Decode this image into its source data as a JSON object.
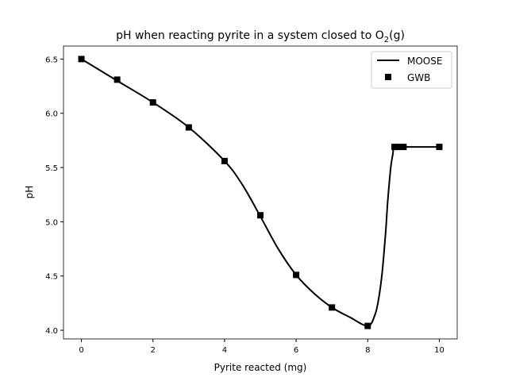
{
  "chart_data": {
    "type": "line",
    "title": "pH when reacting pyrite in a system closed to O",
    "title_sub": "2",
    "title_suffix": "(g)",
    "xlabel": "Pyrite reacted (mg)",
    "ylabel": "pH",
    "xlim": [
      -0.5,
      10.5
    ],
    "ylim": [
      3.92,
      6.62
    ],
    "xticks": [
      0,
      2,
      4,
      6,
      8,
      10
    ],
    "xtick_labels": [
      "0",
      "2",
      "4",
      "6",
      "8",
      "10"
    ],
    "yticks": [
      4.0,
      4.5,
      5.0,
      5.5,
      6.0,
      6.5
    ],
    "ytick_labels": [
      "4.0",
      "4.5",
      "5.0",
      "5.5",
      "6.0",
      "6.5"
    ],
    "grid": false,
    "legend_placement": "top-right",
    "series": [
      {
        "name": "MOOSE",
        "style": "line",
        "color": "#000000",
        "x": [
          0,
          1,
          2,
          3,
          4,
          4.5,
          5,
          5.5,
          6,
          6.5,
          7,
          7.5,
          8,
          8.2,
          8.3,
          8.4,
          8.5,
          8.55,
          8.6,
          8.65,
          8.7,
          8.75,
          9,
          10
        ],
        "y": [
          6.5,
          6.3,
          6.1,
          5.87,
          5.56,
          5.34,
          5.05,
          4.75,
          4.51,
          4.34,
          4.21,
          4.12,
          4.04,
          4.14,
          4.28,
          4.52,
          4.9,
          5.15,
          5.35,
          5.52,
          5.62,
          5.69,
          5.69,
          5.69
        ]
      },
      {
        "name": "GWB",
        "style": "square-marker",
        "color": "#000000",
        "x": [
          0,
          1,
          2,
          3,
          4,
          5,
          6,
          7,
          8,
          8.75,
          8.85,
          9,
          10
        ],
        "y": [
          6.5,
          6.31,
          6.1,
          5.87,
          5.56,
          5.06,
          4.51,
          4.21,
          4.04,
          5.69,
          5.69,
          5.69,
          5.69
        ]
      }
    ]
  }
}
